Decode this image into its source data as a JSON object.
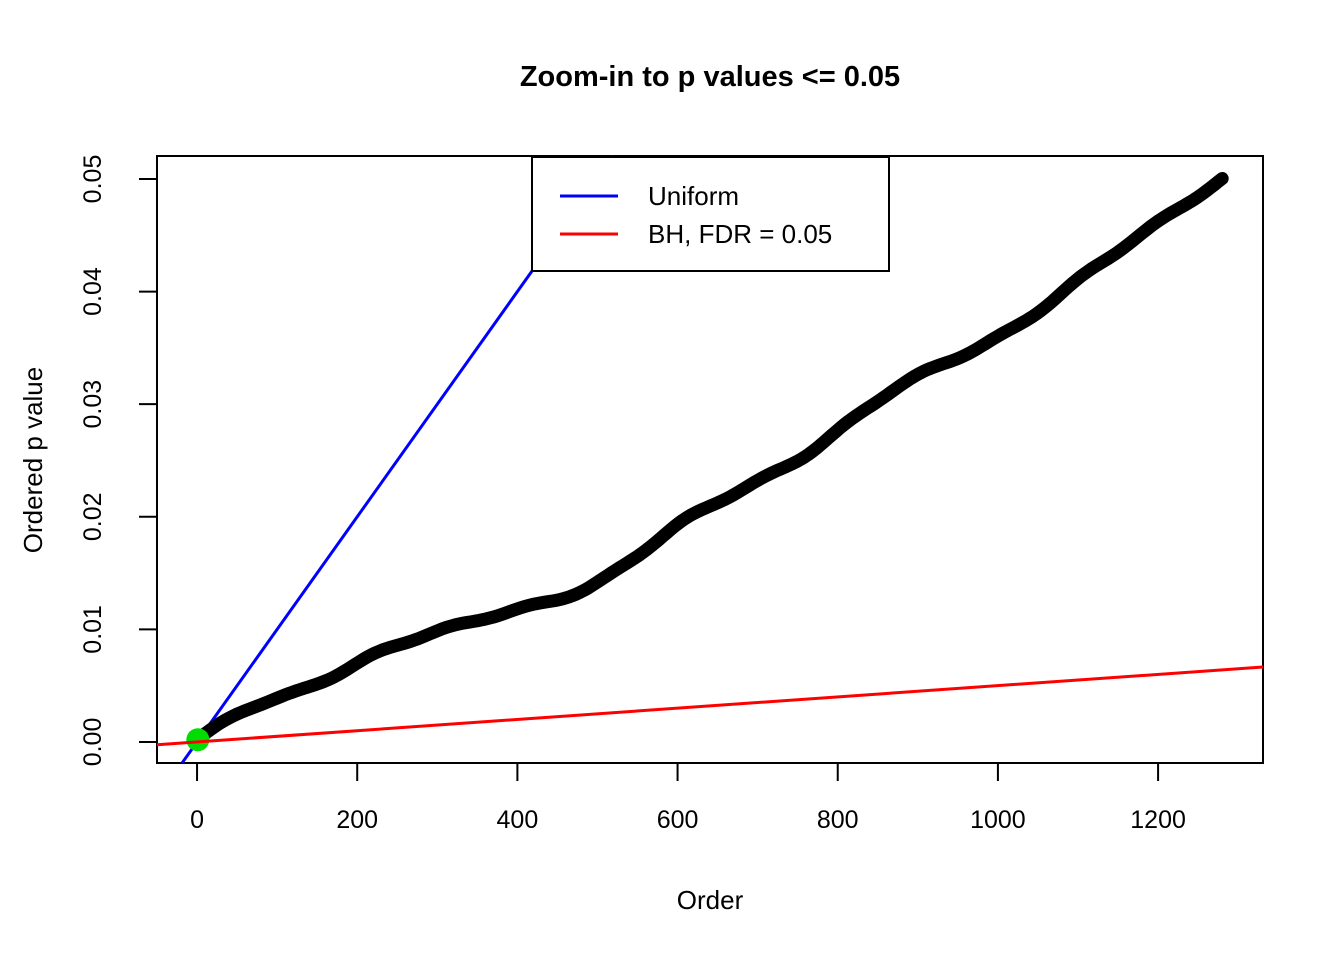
{
  "chart_data": {
    "type": "scatter",
    "title": "Zoom-in to p values <= 0.05",
    "xlabel": "Order",
    "ylabel": "Ordered p value",
    "xlim": [
      -50,
      1331
    ],
    "ylim": [
      -0.00187,
      0.05204
    ],
    "x_ticks": [
      0,
      200,
      400,
      600,
      800,
      1000,
      1200
    ],
    "x_tick_labels": [
      "0",
      "200",
      "400",
      "600",
      "800",
      "1000",
      "1200"
    ],
    "y_ticks": [
      0.0,
      0.01,
      0.02,
      0.03,
      0.04,
      0.05
    ],
    "y_tick_labels": [
      "0.00",
      "0.01",
      "0.02",
      "0.03",
      "0.04",
      "0.05"
    ],
    "grid": false,
    "legend": {
      "position": "top-center-inside",
      "entries": [
        {
          "label": "Uniform",
          "color": "#0000FF"
        },
        {
          "label": "BH, FDR = 0.05",
          "color": "#FF0000"
        }
      ]
    },
    "series": [
      {
        "name": "ordered-p-values",
        "kind": "thick-point-curve",
        "color": "#000000",
        "n_points": 1280,
        "x_range": [
          1,
          1280
        ],
        "y_range": [
          0.0002,
          0.05
        ],
        "anchor_x": [
          1,
          66,
          128,
          253,
          353,
          478,
          615,
          753,
          878,
          1015,
          1127,
          1280
        ],
        "anchor_y": [
          0.0002,
          0.0031,
          0.0046,
          0.0087,
          0.0108,
          0.0134,
          0.02,
          0.0251,
          0.0317,
          0.0366,
          0.0424,
          0.05
        ]
      },
      {
        "name": "uniform-expected-line",
        "kind": "line",
        "color": "#0000FF",
        "points": [
          [
            0,
            0
          ],
          [
            500,
            0.05
          ]
        ]
      },
      {
        "name": "bh-threshold-line",
        "kind": "line",
        "color": "#FF0000",
        "points": [
          [
            0,
            0
          ],
          [
            1000,
            0.005
          ]
        ]
      },
      {
        "name": "significant-point",
        "kind": "point",
        "color": "#00DD00",
        "x": 1,
        "y": 0.0002
      }
    ]
  }
}
